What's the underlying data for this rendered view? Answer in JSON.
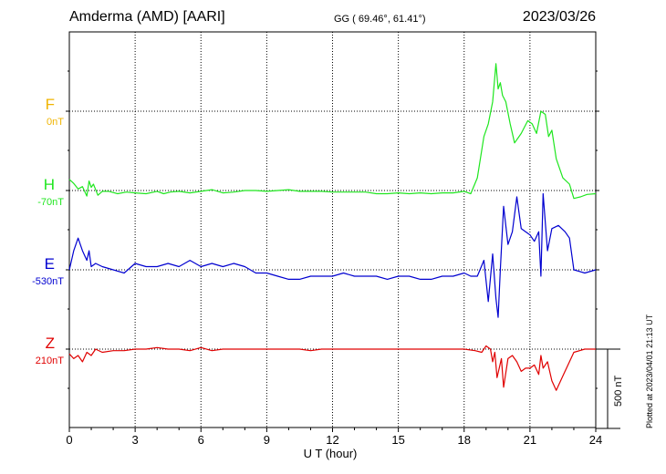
{
  "header": {
    "station": "Amderma (AMD)  [AARI]",
    "coords": "GG ( 69.46°,  61.41°)",
    "date": "2023/03/26"
  },
  "plotted_note": "Plotted at 2023/04/01 21:13 UT",
  "scale_bar_label": "500 nT",
  "colors": {
    "F": "#f0b400",
    "H": "#1ee61e",
    "E": "#0000d0",
    "Z": "#e00000"
  },
  "chart_data": {
    "type": "line",
    "xlabel": "U T (hour)",
    "xlim": [
      0,
      24
    ],
    "xticks": [
      "0",
      "3",
      "6",
      "9",
      "12",
      "15",
      "18",
      "21",
      "24"
    ],
    "scale_bar_nT": 500,
    "channels": [
      {
        "name": "F",
        "offset_label": "0nT",
        "values": []
      },
      {
        "name": "H",
        "offset_label": "-70nT",
        "x": [
          0,
          0.2,
          0.4,
          0.6,
          0.8,
          0.9,
          1.0,
          1.1,
          1.3,
          1.5,
          1.8,
          2.2,
          2.6,
          3.0,
          3.5,
          4.0,
          4.3,
          4.6,
          5.0,
          5.5,
          6.0,
          6.5,
          7.0,
          7.5,
          8.0,
          8.5,
          9.0,
          9.5,
          10.0,
          10.5,
          11.0,
          11.5,
          12.0,
          12.5,
          13.0,
          13.5,
          14.0,
          14.5,
          15.0,
          15.5,
          16.0,
          16.5,
          17.0,
          17.5,
          18.0,
          18.3,
          18.6,
          18.9,
          19.1,
          19.3,
          19.45,
          19.55,
          19.65,
          19.75,
          19.9,
          20.1,
          20.3,
          20.6,
          20.9,
          21.1,
          21.3,
          21.5,
          21.7,
          21.85,
          22.0,
          22.2,
          22.5,
          22.8,
          23.0,
          23.3,
          23.6,
          24
        ],
        "values": [
          70,
          45,
          10,
          25,
          -35,
          60,
          20,
          40,
          -30,
          -5,
          -5,
          -20,
          -10,
          -15,
          -20,
          -5,
          -20,
          -10,
          -5,
          -15,
          -5,
          5,
          -15,
          -10,
          0,
          0,
          -5,
          0,
          5,
          -5,
          -5,
          -5,
          -10,
          -10,
          -10,
          -10,
          -20,
          -20,
          -15,
          -20,
          -15,
          -20,
          -15,
          -15,
          -5,
          -20,
          80,
          340,
          420,
          560,
          800,
          640,
          680,
          600,
          560,
          420,
          300,
          360,
          440,
          420,
          360,
          500,
          480,
          340,
          380,
          200,
          80,
          40,
          -50,
          -40,
          -25,
          -20
        ]
      },
      {
        "name": "E",
        "offset_label": "-530nT",
        "x": [
          0,
          0.1,
          0.2,
          0.4,
          0.6,
          0.8,
          0.9,
          1.0,
          1.2,
          1.5,
          2.0,
          2.5,
          3.0,
          3.5,
          4.0,
          4.5,
          5.0,
          5.5,
          6.0,
          6.5,
          7.0,
          7.5,
          8.0,
          8.5,
          9.0,
          9.5,
          10.0,
          10.5,
          11.0,
          11.5,
          12.0,
          12.5,
          13.0,
          13.5,
          14.0,
          14.5,
          15.0,
          15.5,
          16.0,
          16.5,
          17.0,
          17.5,
          18.0,
          18.3,
          18.6,
          18.9,
          19.1,
          19.3,
          19.45,
          19.55,
          19.65,
          19.8,
          20.0,
          20.2,
          20.4,
          20.6,
          20.8,
          21.0,
          21.2,
          21.4,
          21.5,
          21.6,
          21.8,
          22.0,
          22.3,
          22.6,
          22.8,
          23.0,
          23.5,
          24
        ],
        "values": [
          0,
          60,
          120,
          200,
          120,
          60,
          120,
          20,
          40,
          20,
          0,
          -20,
          40,
          20,
          20,
          40,
          20,
          60,
          20,
          40,
          20,
          40,
          20,
          -20,
          -20,
          -40,
          -60,
          -60,
          -40,
          -40,
          -40,
          -20,
          -40,
          -40,
          -40,
          -60,
          -40,
          -40,
          -60,
          -60,
          -40,
          -40,
          -20,
          -40,
          -40,
          60,
          -200,
          100,
          -180,
          -300,
          0,
          400,
          160,
          240,
          460,
          260,
          240,
          220,
          180,
          240,
          -40,
          480,
          120,
          260,
          280,
          240,
          200,
          0,
          -20,
          0
        ]
      },
      {
        "name": "Z",
        "offset_label": "210nT",
        "x": [
          0,
          0.2,
          0.4,
          0.6,
          0.8,
          1.0,
          1.2,
          1.5,
          2.0,
          2.5,
          3.0,
          3.5,
          4.0,
          4.5,
          5.0,
          5.5,
          6.0,
          6.5,
          7.0,
          7.5,
          8.0,
          8.5,
          9.0,
          9.5,
          10.0,
          10.5,
          11.0,
          11.5,
          12.0,
          12.5,
          13.0,
          13.5,
          14.0,
          14.5,
          15.0,
          15.5,
          16.0,
          16.5,
          17.0,
          17.5,
          18.0,
          18.5,
          18.8,
          19.0,
          19.2,
          19.3,
          19.4,
          19.5,
          19.6,
          19.7,
          19.8,
          20.0,
          20.2,
          20.4,
          20.6,
          20.8,
          21.0,
          21.2,
          21.4,
          21.5,
          21.6,
          21.8,
          22.0,
          22.2,
          22.4,
          22.6,
          22.8,
          23.0,
          23.5,
          24
        ],
        "values": [
          -30,
          -60,
          -40,
          -80,
          -20,
          -40,
          0,
          -20,
          -10,
          -10,
          0,
          0,
          10,
          0,
          0,
          -10,
          10,
          -10,
          0,
          0,
          0,
          0,
          0,
          0,
          0,
          0,
          -10,
          0,
          0,
          0,
          0,
          0,
          0,
          0,
          0,
          0,
          0,
          0,
          0,
          0,
          0,
          -10,
          -20,
          20,
          0,
          -80,
          -20,
          -180,
          -120,
          -60,
          -240,
          -60,
          -40,
          -80,
          -140,
          -120,
          -120,
          -100,
          -160,
          -40,
          -120,
          -80,
          -200,
          -260,
          -200,
          -140,
          -80,
          -20,
          0,
          0
        ]
      }
    ]
  }
}
